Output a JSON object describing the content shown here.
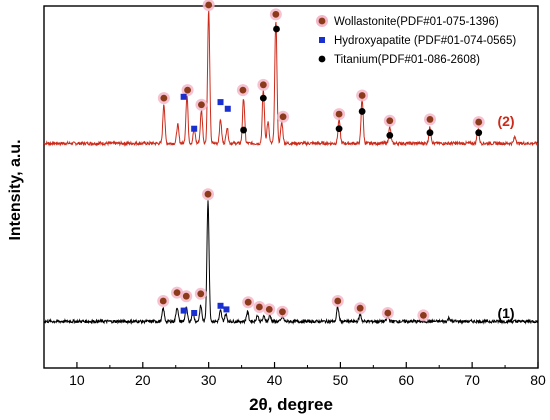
{
  "chart_data": {
    "type": "line",
    "xlabel": "2θ, degree",
    "ylabel": "Intensity, a.u.",
    "xlim": [
      5,
      80
    ],
    "xticks": [
      10,
      20,
      30,
      40,
      50,
      60,
      70,
      80
    ],
    "grid": false,
    "legend_position": "top-right",
    "legend": [
      {
        "label": "Wollastonite(PDF#01-075-1396)",
        "marker": "circle",
        "color": "#8b3a1a",
        "halo": "#f4b6c8"
      },
      {
        "label": "Hydroxyapatite (PDF#01-074-0565)",
        "marker": "square",
        "color": "#1a2fd0"
      },
      {
        "label": "Titanium(PDF#01-086-2608)",
        "marker": "circle",
        "color": "#000000"
      }
    ],
    "series": [
      {
        "name": "(2)",
        "color": "#cc2a1a",
        "baseline": 0.05,
        "noise": 0.012,
        "peaks": [
          {
            "x": 23.2,
            "h": 0.3
          },
          {
            "x": 25.3,
            "h": 0.14
          },
          {
            "x": 26.7,
            "h": 0.36
          },
          {
            "x": 27.8,
            "h": 0.11
          },
          {
            "x": 28.9,
            "h": 0.25
          },
          {
            "x": 30.0,
            "h": 1.0
          },
          {
            "x": 31.8,
            "h": 0.18
          },
          {
            "x": 32.8,
            "h": 0.12
          },
          {
            "x": 35.3,
            "h": 0.34
          },
          {
            "x": 38.3,
            "h": 0.4
          },
          {
            "x": 39.0,
            "h": 0.16
          },
          {
            "x": 40.2,
            "h": 0.93
          },
          {
            "x": 41.1,
            "h": 0.16
          },
          {
            "x": 49.8,
            "h": 0.18
          },
          {
            "x": 53.3,
            "h": 0.34
          },
          {
            "x": 57.5,
            "h": 0.12
          },
          {
            "x": 63.6,
            "h": 0.12
          },
          {
            "x": 70.9,
            "h": 0.11
          },
          {
            "x": 76.5,
            "h": 0.05
          }
        ],
        "markers": {
          "wollastonite": [
            {
              "x": 23.2,
              "y": 0.39
            },
            {
              "x": 26.8,
              "y": 0.45
            },
            {
              "x": 28.9,
              "y": 0.34
            },
            {
              "x": 30.0,
              "y": 1.09
            },
            {
              "x": 35.2,
              "y": 0.45
            },
            {
              "x": 38.3,
              "y": 0.49
            },
            {
              "x": 40.2,
              "y": 1.02
            },
            {
              "x": 41.3,
              "y": 0.25
            },
            {
              "x": 49.8,
              "y": 0.27
            },
            {
              "x": 53.3,
              "y": 0.41
            },
            {
              "x": 57.5,
              "y": 0.22
            },
            {
              "x": 63.6,
              "y": 0.23
            },
            {
              "x": 71.0,
              "y": 0.21
            }
          ],
          "hydroxyapatite": [
            {
              "x": 26.2,
              "y": 0.4
            },
            {
              "x": 27.8,
              "y": 0.16
            },
            {
              "x": 31.8,
              "y": 0.36
            },
            {
              "x": 32.9,
              "y": 0.31
            }
          ],
          "titanium": [
            {
              "x": 35.3,
              "y": 0.15
            },
            {
              "x": 38.3,
              "y": 0.39
            },
            {
              "x": 40.3,
              "y": 0.91
            },
            {
              "x": 49.8,
              "y": 0.16
            },
            {
              "x": 53.3,
              "y": 0.29
            },
            {
              "x": 57.5,
              "y": 0.11
            },
            {
              "x": 63.6,
              "y": 0.13
            },
            {
              "x": 71.0,
              "y": 0.13
            }
          ]
        }
      },
      {
        "name": "(1)",
        "color": "#000000",
        "baseline": 0.03,
        "noise": 0.013,
        "peaks": [
          {
            "x": 23.1,
            "h": 0.11
          },
          {
            "x": 25.2,
            "h": 0.12
          },
          {
            "x": 26.6,
            "h": 0.11
          },
          {
            "x": 27.6,
            "h": 0.08
          },
          {
            "x": 28.8,
            "h": 0.13
          },
          {
            "x": 29.9,
            "h": 1.0
          },
          {
            "x": 31.8,
            "h": 0.09
          },
          {
            "x": 32.6,
            "h": 0.06
          },
          {
            "x": 35.9,
            "h": 0.08
          },
          {
            "x": 37.4,
            "h": 0.05
          },
          {
            "x": 38.4,
            "h": 0.04
          },
          {
            "x": 39.3,
            "h": 0.05
          },
          {
            "x": 41.2,
            "h": 0.04
          },
          {
            "x": 49.6,
            "h": 0.12
          },
          {
            "x": 53.0,
            "h": 0.06
          },
          {
            "x": 57.2,
            "h": 0.04
          },
          {
            "x": 66.5,
            "h": 0.03
          }
        ],
        "markers": {
          "wollastonite": [
            {
              "x": 23.1,
              "y": 0.2
            },
            {
              "x": 25.2,
              "y": 0.27
            },
            {
              "x": 26.6,
              "y": 0.24
            },
            {
              "x": 28.8,
              "y": 0.26
            },
            {
              "x": 29.9,
              "y": 1.09
            },
            {
              "x": 36.0,
              "y": 0.19
            },
            {
              "x": 37.7,
              "y": 0.15
            },
            {
              "x": 39.2,
              "y": 0.13
            },
            {
              "x": 41.2,
              "y": 0.11
            },
            {
              "x": 49.6,
              "y": 0.2
            },
            {
              "x": 53.0,
              "y": 0.14
            },
            {
              "x": 57.2,
              "y": 0.1
            },
            {
              "x": 62.6,
              "y": 0.08
            }
          ],
          "hydroxyapatite": [
            {
              "x": 26.2,
              "y": 0.12
            },
            {
              "x": 27.8,
              "y": 0.1
            },
            {
              "x": 31.8,
              "y": 0.16
            },
            {
              "x": 32.7,
              "y": 0.13
            }
          ],
          "titanium": []
        }
      }
    ]
  }
}
